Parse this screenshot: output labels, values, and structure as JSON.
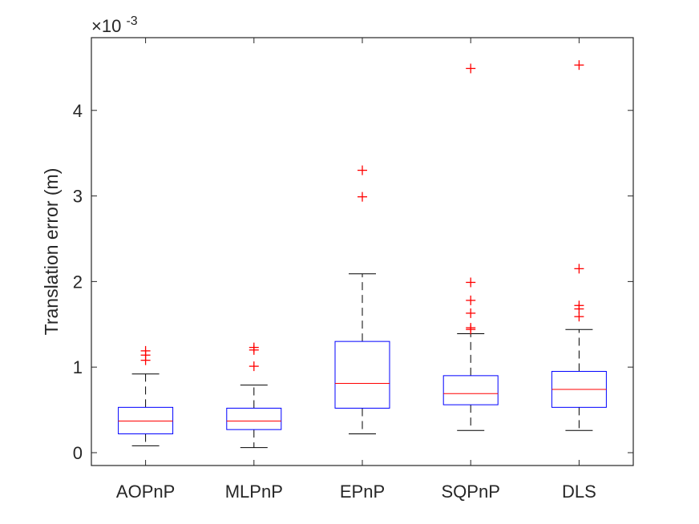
{
  "chart_data": {
    "type": "box",
    "ylabel": "Translation error (m)",
    "xlabel": "",
    "y_exponent": {
      "base": "×10",
      "exponent": "-3"
    },
    "ylim": [
      -0.15,
      4.85
    ],
    "yticks": [
      0,
      1,
      2,
      3,
      4
    ],
    "ytick_labels": [
      "0",
      "1",
      "2",
      "3",
      "4"
    ],
    "categories": [
      "AOPnP",
      "MLPnP",
      "EPnP",
      "SQPnP",
      "DLS"
    ],
    "boxes": [
      {
        "name": "AOPnP",
        "q1": 0.22,
        "median": 0.37,
        "q3": 0.53,
        "whisker_low": 0.08,
        "whisker_high": 0.92,
        "outliers": [
          1.08,
          1.14,
          1.19
        ]
      },
      {
        "name": "MLPnP",
        "q1": 0.27,
        "median": 0.37,
        "q3": 0.52,
        "whisker_low": 0.06,
        "whisker_high": 0.79,
        "outliers": [
          1.01,
          1.2,
          1.23
        ]
      },
      {
        "name": "EPnP",
        "q1": 0.52,
        "median": 0.81,
        "q3": 1.3,
        "whisker_low": 0.22,
        "whisker_high": 2.09,
        "outliers": [
          2.99,
          3.3
        ]
      },
      {
        "name": "SQPnP",
        "q1": 0.56,
        "median": 0.69,
        "q3": 0.9,
        "whisker_low": 0.26,
        "whisker_high": 1.39,
        "outliers": [
          1.44,
          1.46,
          1.63,
          1.78,
          1.99,
          4.49
        ]
      },
      {
        "name": "DLS",
        "q1": 0.53,
        "median": 0.74,
        "q3": 0.95,
        "whisker_low": 0.26,
        "whisker_high": 1.44,
        "outliers": [
          1.59,
          1.68,
          1.72,
          2.15,
          4.53
        ]
      }
    ],
    "colors": {
      "box": "#0000ff",
      "median": "#ff0000",
      "whisker": "#000000",
      "outlier": "#ff0000",
      "axis": "#262626"
    }
  }
}
